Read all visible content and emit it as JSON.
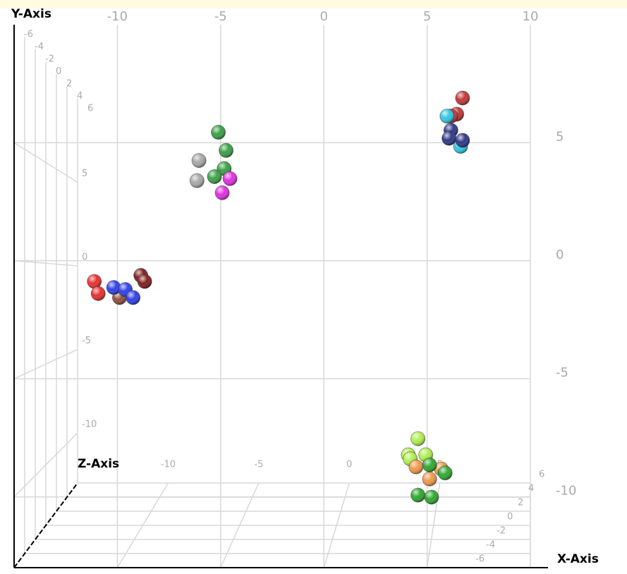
{
  "chart_data": {
    "type": "scatter3d",
    "xlabel": "X-Axis",
    "ylabel": "Y-Axis",
    "zlabel": "Z-Axis",
    "xlim": [
      -15,
      10
    ],
    "ylim": [
      -13,
      10
    ],
    "zlim": [
      -6,
      6
    ],
    "xticks": [
      -10,
      -5,
      0,
      5,
      10
    ],
    "yticks": [
      -10,
      -5,
      0,
      5
    ],
    "zticks": [
      -6,
      -4,
      -2,
      0,
      2,
      4,
      6
    ],
    "grid": true,
    "series": [
      {
        "color": "#3aa046",
        "x": [
          -6.1,
          -5.7,
          -5.8,
          -6.3
        ],
        "y": [
          6.5,
          5.6,
          4.7,
          4.3
        ],
        "z": [
          0,
          0,
          0,
          0
        ]
      },
      {
        "color": "#a8a8a8",
        "x": [
          -7.1,
          -7.2
        ],
        "y": [
          5.1,
          4.1
        ],
        "z": [
          0,
          0
        ]
      },
      {
        "color": "#e030e0",
        "x": [
          -5.9,
          -5.5
        ],
        "y": [
          3.5,
          4.2
        ],
        "z": [
          0,
          0
        ]
      },
      {
        "color": "#c03838",
        "x": [
          6.5,
          6.2,
          5.9
        ],
        "y": [
          8.2,
          7.4,
          7.3
        ],
        "z": [
          0,
          0,
          0
        ]
      },
      {
        "color": "#30c8e0",
        "x": [
          6.4,
          5.7
        ],
        "y": [
          5.8,
          7.3
        ],
        "z": [
          0,
          0
        ]
      },
      {
        "color": "#303888",
        "x": [
          5.9,
          5.8,
          6.5
        ],
        "y": [
          6.6,
          6.2,
          6.1
        ],
        "z": [
          0,
          0,
          0
        ]
      },
      {
        "color": "#e83030",
        "x": [
          -12.5,
          -12.3
        ],
        "y": [
          -0.9,
          -1.5
        ],
        "z": [
          0,
          0
        ]
      },
      {
        "color": "#802020",
        "x": [
          -10.1,
          -9.9
        ],
        "y": [
          -0.6,
          -0.9
        ],
        "z": [
          0,
          0
        ]
      },
      {
        "color": "#905040",
        "x": [
          -11.2
        ],
        "y": [
          -1.7
        ],
        "z": [
          0
        ]
      },
      {
        "color": "#3040e8",
        "x": [
          -11.5,
          -10.9,
          -10.5
        ],
        "y": [
          -1.2,
          -1.3,
          -1.7
        ],
        "z": [
          0,
          0,
          0
        ]
      },
      {
        "color": "#b0f050",
        "x": [
          4.2,
          3.7,
          4.6,
          3.8
        ],
        "y": [
          -8.7,
          -9.5,
          -9.5,
          -9.7
        ],
        "z": [
          0,
          0,
          0,
          0
        ]
      },
      {
        "color": "#f09848",
        "x": [
          4.1,
          4.8,
          5.4
        ],
        "y": [
          -10.1,
          -10.7,
          -10.2
        ],
        "z": [
          0,
          0,
          0
        ]
      },
      {
        "color": "#30a830",
        "x": [
          4.2,
          4.9,
          5.6,
          4.8
        ],
        "y": [
          -11.5,
          -11.6,
          -10.4,
          -10.0
        ],
        "z": [
          0,
          0,
          0,
          0
        ]
      }
    ]
  }
}
